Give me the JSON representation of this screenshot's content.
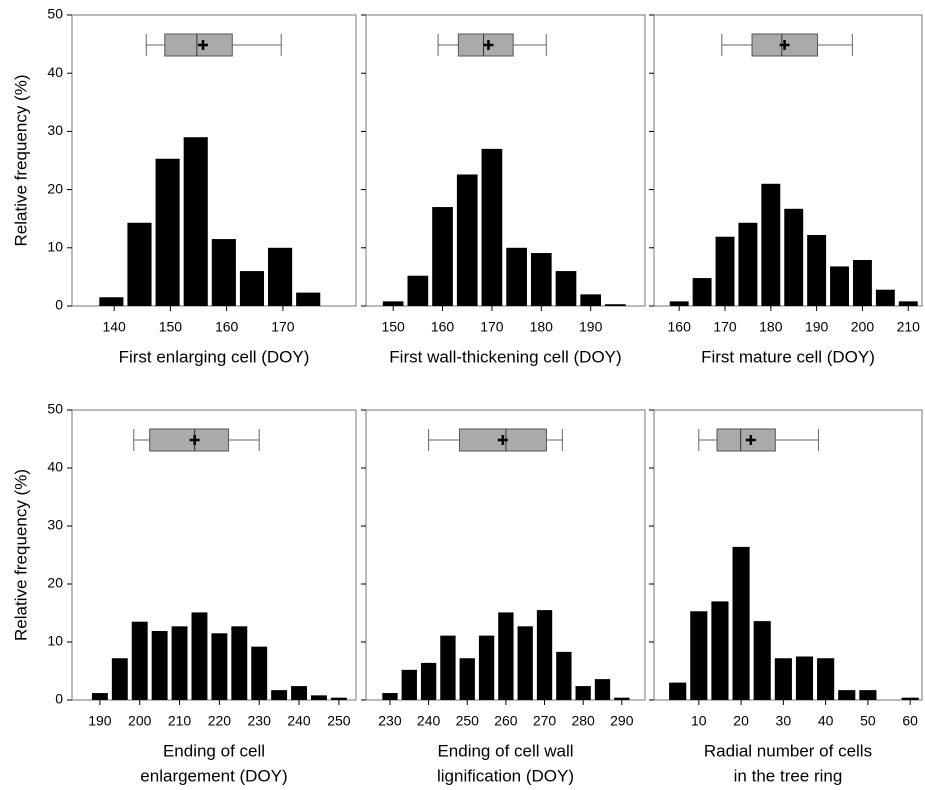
{
  "chart_data": [
    {
      "type": "histogram",
      "xlabel": [
        "First enlarging cell (DOY)"
      ],
      "ylabel": "Relative frequency (%)",
      "show_ytick_labels": true,
      "bins": [
        137,
        142,
        147,
        152,
        157,
        162,
        167,
        172,
        177
      ],
      "values": [
        1.5,
        14.3,
        25.3,
        29,
        11.5,
        6,
        10,
        2.3
      ],
      "color": "#000000",
      "xlim": [
        132.5,
        183
      ],
      "xticks": [
        140,
        150,
        160,
        170
      ],
      "ylim": [
        0,
        50
      ],
      "yticks": [
        0,
        10,
        20,
        30,
        40,
        50
      ],
      "boxplot": {
        "whislo": 145.7,
        "q1": 149,
        "med": 154.7,
        "q3": 161,
        "whishi": 169.7,
        "mean": 155.8,
        "color": "#aaaaaa"
      }
    },
    {
      "type": "histogram",
      "xlabel": [
        "First wall-thickening cell (DOY)"
      ],
      "show_ytick_labels": false,
      "bins": [
        147.5,
        152.5,
        157.5,
        162.5,
        167.5,
        172.5,
        177.5,
        182.5,
        187.5,
        192.5,
        197.5
      ],
      "values": [
        0.8,
        5.2,
        17,
        22.6,
        27,
        10,
        9.1,
        6,
        2,
        0.3
      ],
      "color": "#000000",
      "xlim": [
        144.5,
        201
      ],
      "xticks": [
        150,
        160,
        170,
        180,
        190
      ],
      "ylim": [
        0,
        50
      ],
      "yticks": [
        0,
        10,
        20,
        30,
        40,
        50
      ],
      "boxplot": {
        "whislo": 159.1,
        "q1": 163.2,
        "med": 168.3,
        "q3": 174.3,
        "whishi": 181,
        "mean": 169.3,
        "color": "#aaaaaa"
      }
    },
    {
      "type": "histogram",
      "xlabel": [
        "First mature cell (DOY)"
      ],
      "show_ytick_labels": false,
      "bins": [
        157.5,
        162.5,
        167.5,
        172.5,
        177.5,
        182.5,
        187.5,
        192.5,
        197.5,
        202.5,
        207.5,
        212.5
      ],
      "values": [
        0.8,
        4.8,
        11.9,
        14.3,
        21,
        16.7,
        12.2,
        6.8,
        7.9,
        2.8,
        0.8
      ],
      "color": "#000000",
      "xlim": [
        154.5,
        213
      ],
      "xticks": [
        160,
        170,
        180,
        190,
        200,
        210
      ],
      "ylim": [
        0,
        50
      ],
      "yticks": [
        0,
        10,
        20,
        30,
        40,
        50
      ],
      "boxplot": {
        "whislo": 169.3,
        "q1": 175.9,
        "med": 182.4,
        "q3": 190.2,
        "whishi": 197.8,
        "mean": 183,
        "color": "#aaaaaa"
      }
    },
    {
      "type": "histogram",
      "xlabel": [
        "Ending of cell",
        "enlargement (DOY)"
      ],
      "ylabel": "Relative frequency (%)",
      "show_ytick_labels": true,
      "bins": [
        187.5,
        192.5,
        197.5,
        202.5,
        207.5,
        212.5,
        217.5,
        222.5,
        227.5,
        232.5,
        237.5,
        242.5,
        247.5,
        252.5
      ],
      "values": [
        1.2,
        7.2,
        13.5,
        11.9,
        12.7,
        15.1,
        11.5,
        12.7,
        9.2,
        1.7,
        2.4,
        0.8,
        0.4
      ],
      "color": "#000000",
      "xlim": [
        183,
        254.3
      ],
      "xticks": [
        190,
        200,
        210,
        220,
        230,
        240,
        250
      ],
      "ylim": [
        0,
        50
      ],
      "yticks": [
        0,
        10,
        20,
        30,
        40,
        50
      ],
      "boxplot": {
        "whislo": 198.5,
        "q1": 202.5,
        "med": 213.8,
        "q3": 222.3,
        "whishi": 230,
        "mean": 213.8,
        "color": "#aaaaaa"
      }
    },
    {
      "type": "histogram",
      "xlabel": [
        "Ending of cell wall",
        "lignification (DOY)"
      ],
      "show_ytick_labels": false,
      "bins": [
        227.5,
        232.5,
        237.5,
        242.5,
        247.5,
        252.5,
        257.5,
        262.5,
        267.5,
        272.5,
        277.5,
        282.5,
        287.5,
        292.5
      ],
      "values": [
        1.2,
        5.2,
        6.4,
        11.1,
        7.2,
        11.1,
        15.1,
        12.7,
        15.5,
        8.3,
        2.4,
        3.6,
        0.4
      ],
      "color": "#000000",
      "xlim": [
        223.8,
        296
      ],
      "xticks": [
        230,
        240,
        250,
        260,
        270,
        280,
        290
      ],
      "ylim": [
        0,
        50
      ],
      "yticks": [
        0,
        10,
        20,
        30,
        40,
        50
      ],
      "boxplot": {
        "whislo": 240,
        "q1": 248,
        "med": 260,
        "q3": 270.5,
        "whishi": 274.6,
        "mean": 259.2,
        "color": "#aaaaaa"
      }
    },
    {
      "type": "histogram",
      "xlabel": [
        "Radial number of cells",
        "in the tree ring"
      ],
      "show_ytick_labels": false,
      "bins": [
        2.5,
        7.5,
        12.5,
        17.5,
        22.5,
        27.5,
        32.5,
        37.5,
        42.5,
        47.5,
        52.5,
        57.5,
        62.5
      ],
      "values": [
        3,
        15.3,
        17,
        26.4,
        13.6,
        7.2,
        7.5,
        7.2,
        1.7,
        1.7,
        0,
        0.4
      ],
      "color": "#000000",
      "xlim": [
        -0.6,
        62.8
      ],
      "xticks": [
        10,
        20,
        30,
        40,
        50,
        60
      ],
      "ylim": [
        0,
        50
      ],
      "yticks": [
        0,
        10,
        20,
        30,
        40,
        50
      ],
      "boxplot": {
        "whislo": 10,
        "q1": 14.3,
        "med": 19.9,
        "q3": 28.1,
        "whishi": 38.3,
        "mean": 22.3,
        "color": "#aaaaaa"
      }
    }
  ]
}
